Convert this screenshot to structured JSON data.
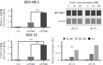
{
  "chart_data": [
    {
      "type": "bar",
      "title": "MDA-MB-2",
      "ylabel": "Relative mRNA\nexpression (fold)",
      "categories": [
        "Ctrl",
        "siRNA1",
        "siRNA2"
      ],
      "values": [
        0.12,
        0.9,
        2.7
      ],
      "colors": [
        "#111111",
        "#777777",
        "#444444"
      ],
      "ylim": [
        0,
        3.5
      ],
      "yticks": [
        0,
        1,
        2,
        3
      ],
      "grid": false,
      "annotations": [
        {
          "text": "***",
          "categories": [
            "siRNA1",
            "siRNA2"
          ]
        }
      ]
    },
    {
      "type": "blot",
      "title": "CaCL concentration (uM)",
      "categories": [
        "0",
        "10",
        "100",
        "0",
        "10",
        "100"
      ],
      "groups": [
        "sR-21",
        "sR-15"
      ],
      "series": [
        {
          "name": "AKT/pAKT",
          "color": "#404040"
        },
        {
          "name": "b-actin",
          "color": "#888888"
        }
      ]
    },
    {
      "type": "bar",
      "title": "MDF-15",
      "ylabel": "EGFR mRNA\nexpression (fold)",
      "categories": [
        "Ctrl",
        "siRNA1",
        "siRNA2"
      ],
      "values": [
        0.08,
        0.55,
        2.4
      ],
      "colors": [
        "#111111",
        "#777777",
        "#444444"
      ],
      "ylim": [
        0,
        3.0
      ],
      "yticks": [
        0,
        1,
        2,
        3
      ],
      "grid": false,
      "annotations": [
        {
          "text": "***",
          "categories": [
            "siRNA1",
            "siRNA2"
          ]
        },
        {
          "text": "***",
          "categories": [
            "Ctrl",
            "siRNA2"
          ]
        }
      ]
    },
    {
      "type": "bar",
      "ylabel": "Relative expression (%)",
      "categories": [
        "sR-21",
        "sR-15"
      ],
      "series": [
        {
          "name": "Ctrl",
          "color": "#111111",
          "values": [
            0.04,
            0.04
          ]
        },
        {
          "name": "10 uM",
          "color": "#777777",
          "values": [
            0.25,
            0.45
          ]
        },
        {
          "name": "100 uM",
          "color": "#aaaaaa",
          "values": [
            0.75,
            1.1
          ]
        }
      ],
      "ylim": [
        0,
        1.4
      ],
      "yticks": [
        0,
        0.5,
        1
      ],
      "grid": false,
      "legend": "upper left",
      "annotations": [
        {
          "text": "***",
          "categories": [
            "sR-21"
          ]
        }
      ]
    }
  ]
}
